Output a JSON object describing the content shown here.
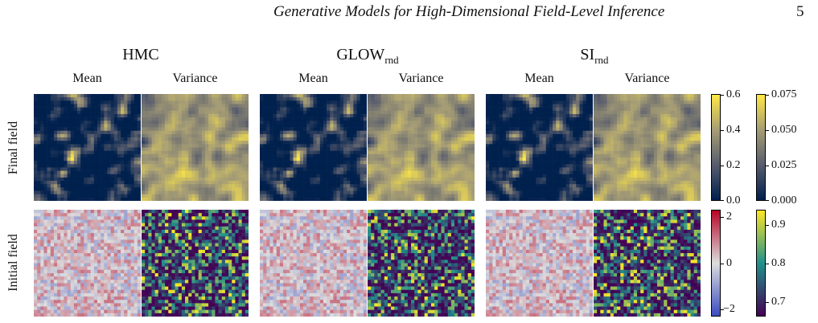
{
  "header": {
    "running_title": "Generative Models for High-Dimensional Field-Level Inference",
    "page_number": "5"
  },
  "figure": {
    "methods": [
      {
        "name": "HMC",
        "sub": ""
      },
      {
        "name": "GLOW",
        "sub": "rnd"
      },
      {
        "name": "SI",
        "sub": "rnd"
      }
    ],
    "column_labels": [
      "Mean",
      "Variance"
    ],
    "row_labels": [
      "Final field",
      "Initial field"
    ],
    "colorbars": {
      "final_mean": {
        "colors": [
          "#00204d",
          "#575c6d",
          "#a69d75",
          "#ffe945"
        ],
        "ticks": [
          "0.6",
          "0.4",
          "0.2",
          "0.0"
        ]
      },
      "final_variance": {
        "colors": [
          "#00204d",
          "#575c6d",
          "#a69d75",
          "#ffe945"
        ],
        "ticks": [
          "0.075",
          "0.050",
          "0.025",
          "0.000"
        ]
      },
      "initial_mean": {
        "colors": [
          "#3b4cc0",
          "#dddddd",
          "#b40426"
        ],
        "ticks": [
          "2",
          "0",
          "−2"
        ]
      },
      "initial_variance": {
        "colors": [
          "#440154",
          "#21918c",
          "#fde725"
        ],
        "ticks": [
          "0.9",
          "0.8",
          "0.7"
        ]
      }
    }
  }
}
